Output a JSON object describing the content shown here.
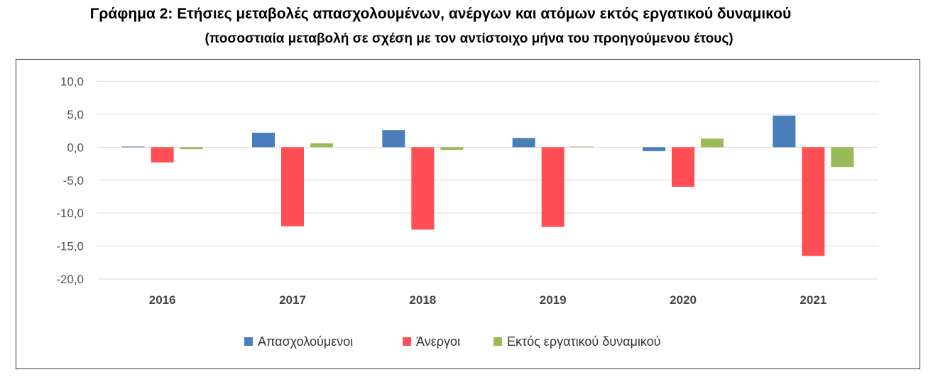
{
  "title": "Γράφημα 2: Ετήσιες μεταβολές απασχολουμένων, ανέργων και ατόμων εκτός εργατικού δυναμικού",
  "subtitle": "(ποσοστιαία μεταβολή σε σχέση με τον αντίστοιχο μήνα του προηγούμενου έτους)",
  "chart_data": {
    "type": "bar",
    "title": "Γράφημα 2: Ετήσιες μεταβολές απασχολουμένων, ανέργων και ατόμων εκτός εργατικού δυναμικού",
    "subtitle": "(ποσοστιαία μεταβολή σε σχέση με τον αντίστοιχο μήνα του προηγούμενου έτους)",
    "categories": [
      "2016",
      "2017",
      "2018",
      "2019",
      "2020",
      "2021"
    ],
    "series": [
      {
        "name": "Απασχολούμενοι",
        "color": "#4a7ebb",
        "values": [
          0.1,
          2.2,
          2.6,
          1.4,
          -0.6,
          4.8
        ]
      },
      {
        "name": "Άνεργοι",
        "color": "#ff4f55",
        "values": [
          -2.3,
          -12.0,
          -12.5,
          -12.1,
          -6.0,
          -16.5
        ]
      },
      {
        "name": "Εκτός εργατικού δυναμικού",
        "color": "#9bbb59",
        "values": [
          -0.3,
          0.6,
          -0.4,
          0.1,
          1.3,
          -3.0
        ]
      }
    ],
    "ylim": [
      -20,
      10
    ],
    "yticks": [
      "10,0",
      "5,0",
      "0,0",
      "-5,0",
      "-10,0",
      "-15,0",
      "-20,0"
    ],
    "ytick_values": [
      10,
      5,
      0,
      -5,
      -10,
      -15,
      -20
    ],
    "grid": true,
    "legend_position": "bottom"
  }
}
